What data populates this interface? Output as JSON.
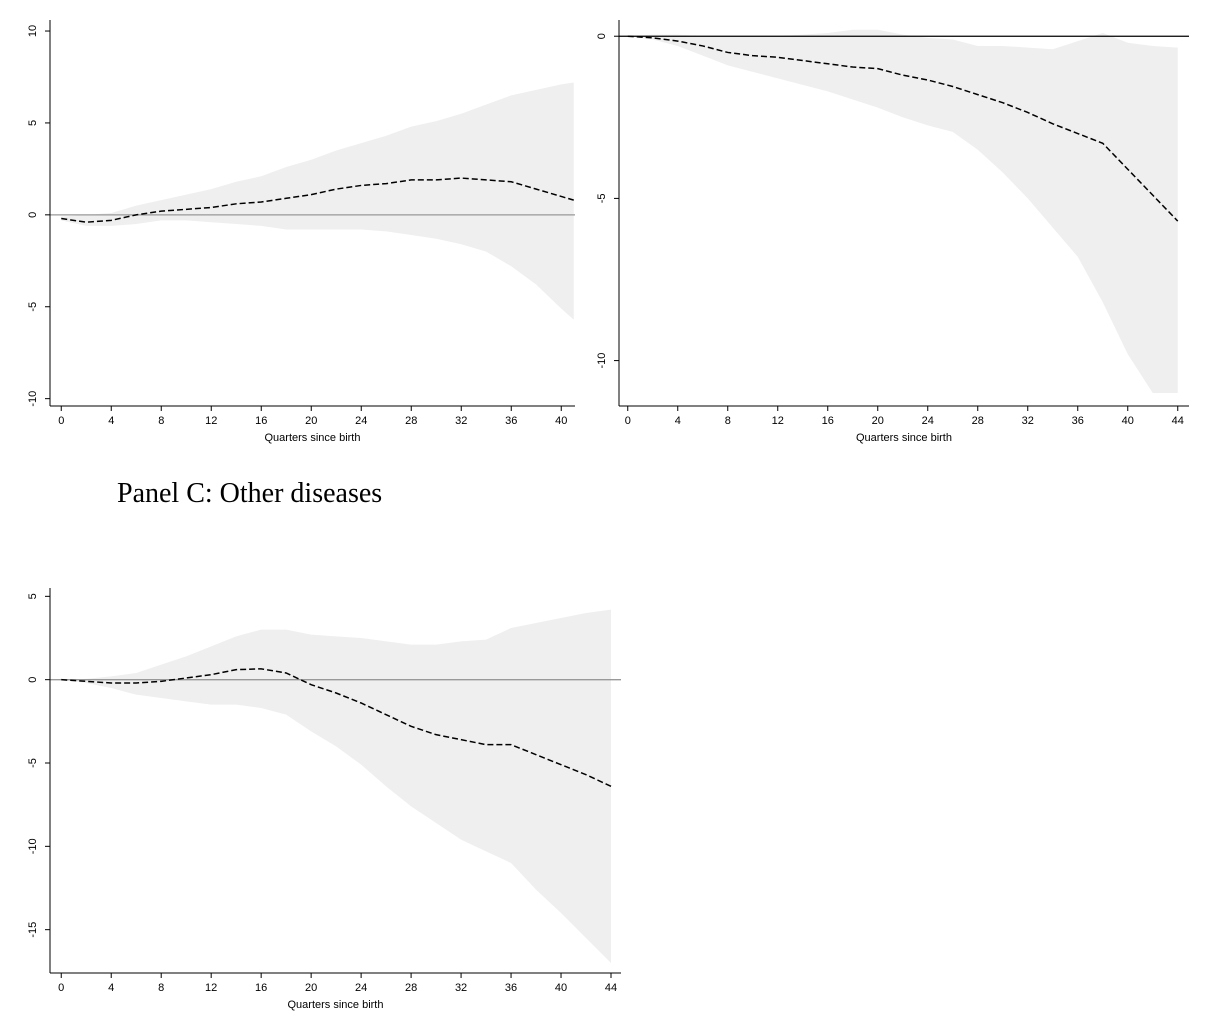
{
  "chart_data": [
    {
      "type": "area-line",
      "x_label": "Quarters since birth",
      "x": [
        0,
        2,
        4,
        6,
        8,
        10,
        12,
        14,
        16,
        18,
        20,
        22,
        24,
        26,
        28,
        30,
        32,
        34,
        36,
        38,
        40,
        41
      ],
      "line": {
        "values": [
          -0.2,
          -0.4,
          -0.3,
          0,
          0.2,
          0.3,
          0.4,
          0.6,
          0.7,
          0.9,
          1.1,
          1.4,
          1.6,
          1.7,
          1.9,
          1.9,
          2.0,
          1.9,
          1.8,
          1.4,
          1.0,
          0.8
        ],
        "color": "#000000"
      },
      "band": {
        "upper": [
          -0.1,
          0,
          0.1,
          0.5,
          0.8,
          1.1,
          1.4,
          1.8,
          2.1,
          2.6,
          3.0,
          3.5,
          3.9,
          4.3,
          4.8,
          5.1,
          5.5,
          6.0,
          6.5,
          6.8,
          7.1,
          7.2
        ],
        "lower": [
          -0.3,
          -0.6,
          -0.6,
          -0.5,
          -0.3,
          -0.3,
          -0.4,
          -0.5,
          -0.6,
          -0.8,
          -0.8,
          -0.8,
          -0.8,
          -0.9,
          -1.1,
          -1.3,
          -1.6,
          -2.0,
          -2.8,
          -3.8,
          -5.1,
          -5.7
        ],
        "color": "#efefef"
      },
      "refline": {
        "value": 0,
        "color": "#999999"
      },
      "xlim": [
        -0.9,
        41.1
      ],
      "xticks": [
        0,
        4,
        8,
        12,
        16,
        20,
        24,
        28,
        32,
        36,
        40
      ],
      "ylim": [
        -10.4,
        10.6
      ],
      "yticks": [
        -10,
        -5,
        0,
        5,
        10
      ]
    },
    {
      "type": "area-line",
      "x_label": "Quarters since birth",
      "x": [
        0,
        2,
        4,
        6,
        8,
        10,
        12,
        14,
        16,
        18,
        20,
        22,
        24,
        26,
        28,
        30,
        32,
        34,
        36,
        38,
        40,
        42,
        44
      ],
      "line": {
        "values": [
          0,
          -0.05,
          -0.15,
          -0.3,
          -0.5,
          -0.6,
          -0.65,
          -0.75,
          -0.85,
          -0.95,
          -1.0,
          -1.2,
          -1.35,
          -1.55,
          -1.8,
          -2.05,
          -2.35,
          -2.7,
          -3.0,
          -3.3,
          -4.1,
          -4.9,
          -5.7
        ],
        "color": "#000000"
      },
      "band": {
        "upper": [
          0,
          0.05,
          0.05,
          0,
          0,
          0,
          0,
          0.05,
          0.1,
          0.2,
          0.2,
          0.05,
          -0.05,
          -0.1,
          -0.3,
          -0.3,
          -0.35,
          -0.4,
          -0.15,
          0.1,
          -0.2,
          -0.3,
          -0.35
        ],
        "lower": [
          0,
          -0.1,
          -0.3,
          -0.6,
          -0.9,
          -1.1,
          -1.3,
          -1.5,
          -1.7,
          -1.95,
          -2.2,
          -2.5,
          -2.75,
          -2.95,
          -3.5,
          -4.2,
          -5.0,
          -5.9,
          -6.8,
          -8.2,
          -9.8,
          -11.0,
          -11.0
        ],
        "color": "#efefef"
      },
      "refline": {
        "value": 0,
        "color": "#000000"
      },
      "xlim": [
        -0.7,
        44.9
      ],
      "xticks": [
        0,
        4,
        8,
        12,
        16,
        20,
        24,
        28,
        32,
        36,
        40,
        44
      ],
      "ylim": [
        -11.4,
        0.5
      ],
      "yticks": [
        -10,
        -5,
        0
      ]
    },
    {
      "type": "area-line",
      "title": "Panel C: Other diseases",
      "x_label": "Quarters since birth",
      "x": [
        0,
        2,
        4,
        6,
        8,
        10,
        12,
        14,
        16,
        18,
        20,
        22,
        24,
        26,
        28,
        30,
        32,
        34,
        36,
        38,
        40,
        42,
        44
      ],
      "line": {
        "values": [
          0,
          -0.1,
          -0.2,
          -0.2,
          -0.1,
          0.1,
          0.3,
          0.6,
          0.65,
          0.4,
          -0.3,
          -0.8,
          -1.4,
          -2.1,
          -2.8,
          -3.3,
          -3.6,
          -3.9,
          -3.9,
          -4.5,
          -5.1,
          -5.7,
          -6.4
        ],
        "color": "#000000"
      },
      "band": {
        "upper": [
          0,
          0.05,
          0.2,
          0.4,
          0.9,
          1.4,
          2.0,
          2.6,
          3.0,
          3.0,
          2.7,
          2.6,
          2.5,
          2.3,
          2.1,
          2.1,
          2.3,
          2.4,
          3.1,
          3.4,
          3.7,
          4.0,
          4.2
        ],
        "lower": [
          0,
          -0.2,
          -0.5,
          -0.9,
          -1.1,
          -1.3,
          -1.5,
          -1.5,
          -1.7,
          -2.1,
          -3.1,
          -4.0,
          -5.1,
          -6.4,
          -7.6,
          -8.6,
          -9.6,
          -10.3,
          -11.0,
          -12.6,
          -14.0,
          -15.5,
          -17.0
        ],
        "color": "#efefef"
      },
      "refline": {
        "value": 0,
        "color": "#999999"
      },
      "xlim": [
        -0.9,
        44.8
      ],
      "xticks": [
        0,
        4,
        8,
        12,
        16,
        20,
        24,
        28,
        32,
        36,
        40,
        44
      ],
      "ylim": [
        -17.6,
        5.5
      ],
      "yticks": [
        -15,
        -10,
        -5,
        0,
        5
      ]
    }
  ]
}
